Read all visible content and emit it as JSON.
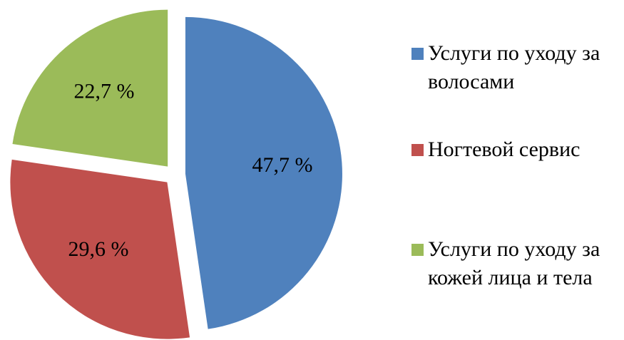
{
  "chart_data": {
    "type": "pie",
    "categories": [
      "Услуги по уходу за волосами",
      "Ногтевой сервис",
      "Услуги по уходу за кожей лица и тела"
    ],
    "values": [
      47.7,
      29.6,
      22.7
    ],
    "value_labels": [
      "47,7 %",
      "29,6 %",
      "22,7 %"
    ],
    "colors": [
      "#4f81bd",
      "#c0504d",
      "#9bbb59"
    ],
    "legend": "right"
  }
}
